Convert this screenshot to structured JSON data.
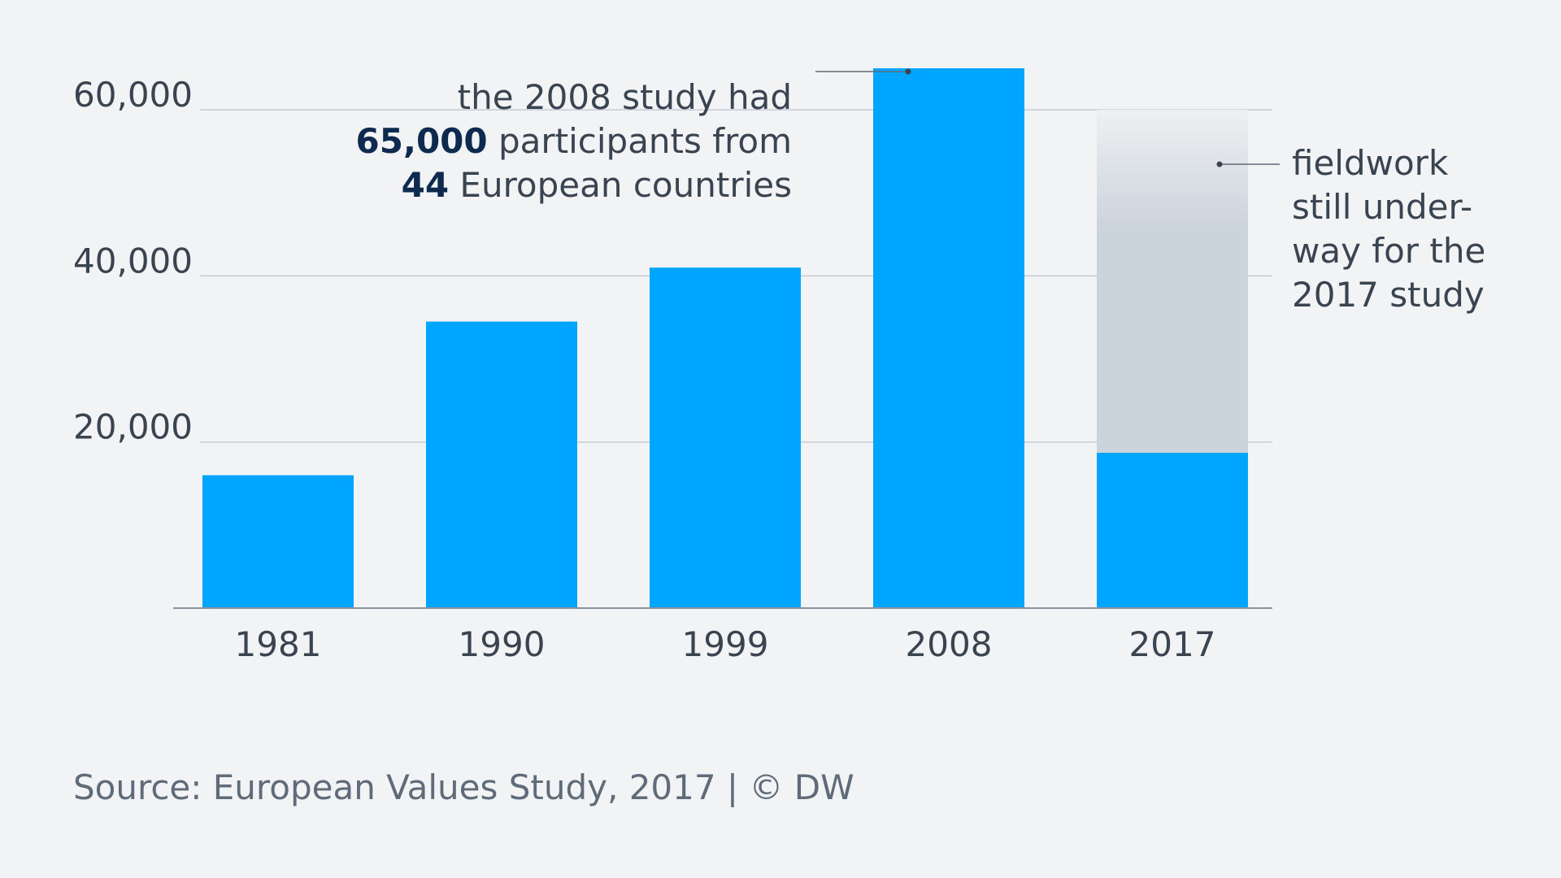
{
  "chart_data": {
    "type": "bar",
    "categories": [
      "1981",
      "1990",
      "1999",
      "2008",
      "2017"
    ],
    "values": [
      16000,
      34500,
      41000,
      65000,
      18700
    ],
    "projected_range": {
      "category": "2017",
      "from": 18700,
      "to": 60000
    },
    "yticks": [
      20000,
      40000,
      60000
    ],
    "ytick_labels": [
      "20,000",
      "40,000",
      "60,000"
    ],
    "ylim": [
      0,
      65000
    ],
    "grid": true,
    "colors": {
      "bar": "#00a5ff",
      "projection_top": "#eef0f2",
      "projection_bottom": "#cbd3db",
      "gridline": "#c5ccd3",
      "axis": "#8a939c",
      "text": "#3a4450",
      "emphasis": "#0e2a4f"
    }
  },
  "annotations": {
    "study_2008": {
      "line1": "the 2008 study had",
      "line2_bold": "65,000",
      "line2_rest": " participants from",
      "line3_bold": "44",
      "line3_rest": " European countries"
    },
    "study_2017": {
      "line1": "fieldwork",
      "line2": "still under-",
      "line3": "way for the",
      "line4": "2017 study"
    }
  },
  "source": "Source: European Values Study, 2017 | © DW"
}
